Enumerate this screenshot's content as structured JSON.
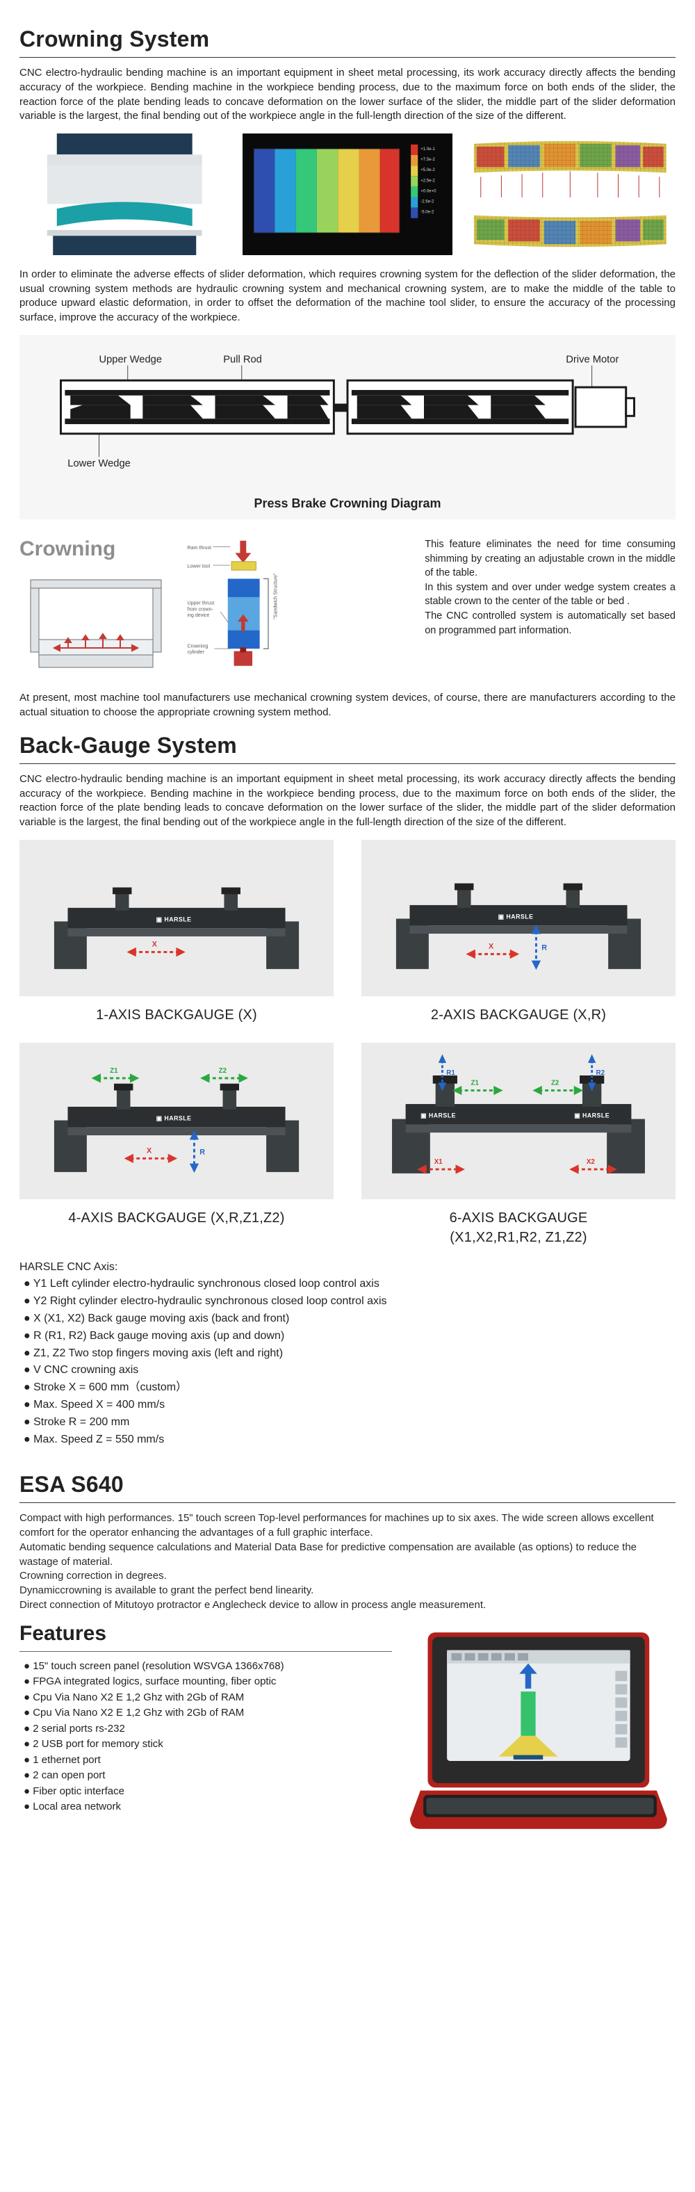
{
  "crowning": {
    "title": "Crowning System",
    "p1": "CNC electro-hydraulic bending machine is an important equipment in sheet metal processing, its work accuracy directly affects the bending accuracy of the workpiece. Bending machine in the workpiece bending process, due to the maximum force on both ends of the slider, the reaction force of the plate bending leads to concave deformation on the lower surface of the slider, the middle part of the slider deformation variable is the largest, the final bending out of the workpiece angle in the full-length direction of the size of the different.",
    "p2": "In order to eliminate the adverse effects of slider deformation, which requires crowning system for the deflection of the slider deformation, the usual crowning system methods are hydraulic crowning system and mechanical crowning system, are to make the middle of the table to produce upward elastic deformation, in order to offset the deformation of the machine tool slider, to ensure the accuracy of the processing surface, improve the accuracy of the workpiece.",
    "diagram": {
      "upper_wedge": "Upper Wedge",
      "pull_rod": "Pull Rod",
      "drive_motor": "Drive Motor",
      "lower_wedge": "Lower Wedge",
      "caption": "Press Brake Crowning Diagram"
    },
    "feature_label": "Crowning",
    "feature_sub_labels": {
      "ram": "Ram thrust",
      "lower": "Lower tool",
      "upper_t": "Upper thrust from crowning device",
      "cyl": "Crowning cylinder",
      "sand": "\"Sandwich Structure\""
    },
    "feature_text_1": "This feature eliminates the need for time consuming shimming by creating an adjustable crown in the middle of the table.",
    "feature_text_2": "In this system and over under wedge system creates a stable crown to the center of the table or bed .",
    "feature_text_3": "The CNC controlled system is automatically set based on programmed part information.",
    "p3": "At present, most machine tool manufacturers use mechanical crowning system devices, of course, there are manufacturers according to the actual situation to choose the appropriate crowning system method."
  },
  "backgauge": {
    "title": "Back-Gauge System",
    "p1": "CNC electro-hydraulic bending machine is an important equipment in sheet metal processing, its work accuracy directly affects the bending accuracy of the workpiece. Bending machine in the workpiece bending process, due to the maximum force on both ends of the slider, the reaction force of the plate bending leads to concave deformation on the lower surface of the slider, the middle part of the slider deformation variable is the largest, the final bending out of the workpiece angle in the full-length direction of the size of the different.",
    "captions": {
      "c1": "1-AXIS BACKGAUGE (X)",
      "c2": "2-AXIS BACKGAUGE (X,R)",
      "c3": "4-AXIS BACKGAUGE (X,R,Z1,Z2)",
      "c4a": "6-AXIS BACKGAUGE",
      "c4b": "(X1,X2,R1,R2, Z1,Z2)"
    },
    "axis_header": "HARSLE CNC Axis:",
    "axis_items": [
      "Y1 Left cylinder electro-hydraulic synchronous closed loop control axis",
      "Y2 Right cylinder electro-hydraulic synchronous closed loop control axis",
      "X (X1, X2) Back gauge moving axis (back and front)",
      "R (R1, R2) Back gauge moving axis (up and down)",
      "Z1, Z2 Two stop fingers moving axis (left and right)",
      "V CNC crowning axis",
      "Stroke X = 600 mm（custom）",
      "Max. Speed X = 400 mm/s",
      "Stroke R = 200 mm",
      "Max. Speed Z = 550 mm/s"
    ],
    "arrow_labels": {
      "x": "X",
      "r": "R",
      "z1": "Z1",
      "z2": "Z2",
      "x1": "X1",
      "x2": "X2",
      "r1": "R1",
      "r2": "R2"
    }
  },
  "esa": {
    "title": "ESA S640",
    "lines": [
      "Compact with high performances. 15\" touch screen Top-level performances for machines up to six axes. The wide screen allows excellent comfort for the operator enhancing the advantages of a full graphic interface.",
      "Automatic bending sequence calculations and Material Data Base for predictive compensation are available (as options) to reduce the wastage of material.",
      "Crowning correction in degrees.",
      "Dynamiccrowning is available to grant the perfect bend linearity.",
      "Direct connection of Mitutoyo protractor e Anglecheck device to allow in process angle measurement."
    ],
    "features_title": "Features",
    "features": [
      "15\" touch screen panel (resolution WSVGA 1366x768)",
      "FPGA integrated logics, surface mounting, fiber optic",
      "Cpu Via Nano X2 E 1,2 Ghz with 2Gb of RAM",
      "Cpu Via Nano X2 E 1,2 Ghz with 2Gb of RAM",
      "2 serial ports rs-232",
      "2 USB port for memory stick",
      "1 ethernet port",
      "2 can open port",
      "Fiber optic interface",
      "Local area network"
    ]
  },
  "colors": {
    "rule": "#666666",
    "text": "#1f1f1f",
    "gray_bg": "#ebebeb",
    "dark_bg": "#0a0a0a",
    "red": "#d9342b",
    "blue": "#2367c9",
    "green": "#2aa83f",
    "teal": "#1aa0a6",
    "steel": "#3a3f42",
    "navy": "#203a54",
    "orange": "#e38b2d",
    "yellow": "#e6cf4a",
    "slab": "#1f4f7a"
  }
}
